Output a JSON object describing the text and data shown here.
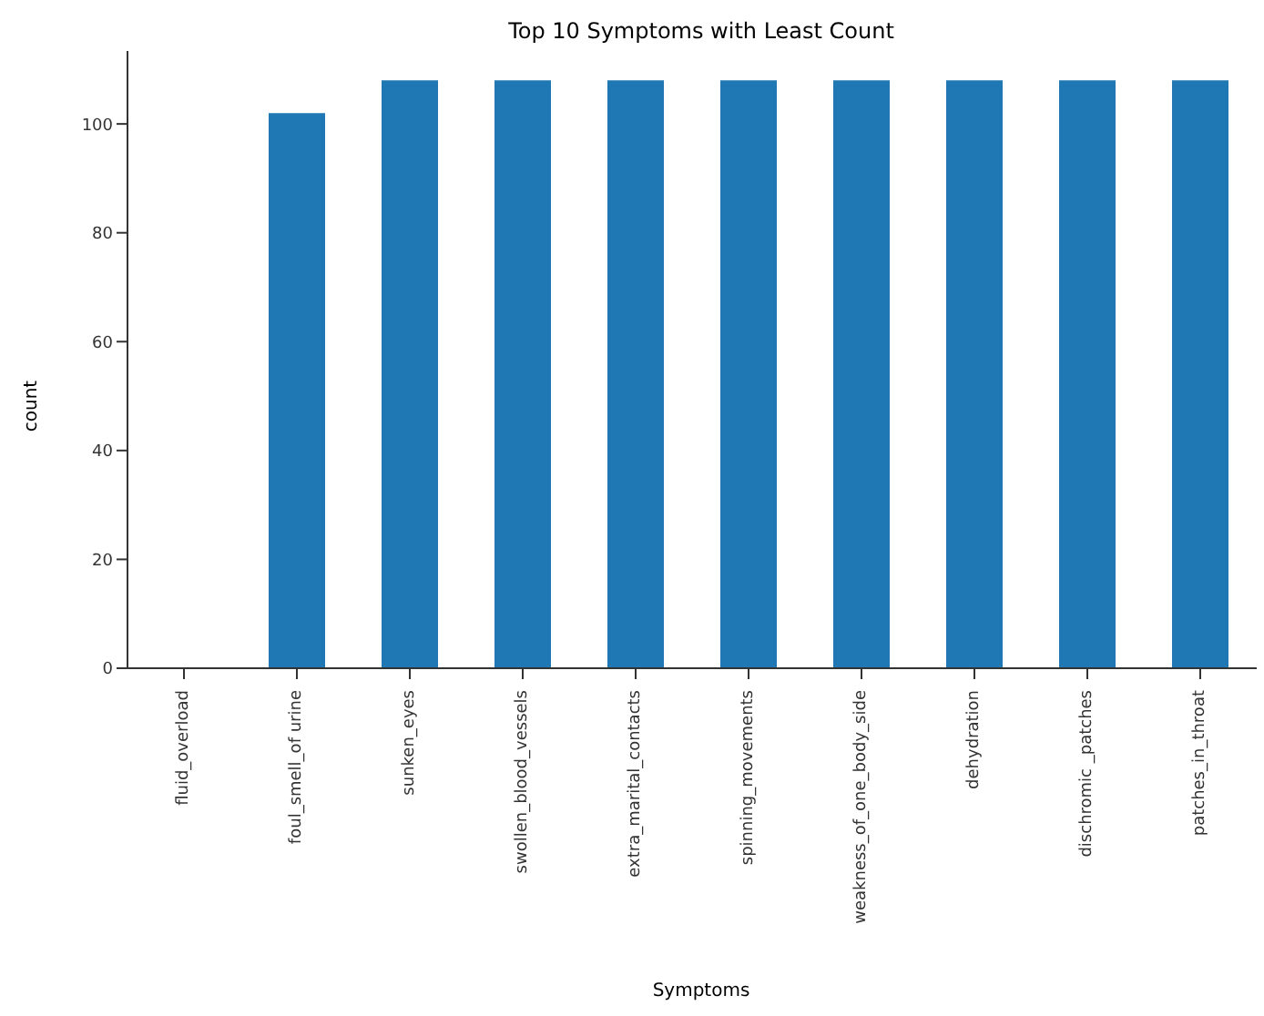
{
  "chart_data": {
    "type": "bar",
    "title": "Top 10 Symptoms with Least Count",
    "xlabel": "Symptoms",
    "ylabel": "count",
    "categories": [
      "fluid_overload",
      "foul_smell_of urine",
      "sunken_eyes",
      "swollen_blood_vessels",
      "extra_marital_contacts",
      "spinning_movements",
      "weakness_of_one_body_side",
      "dehydration",
      "dischromic _patches",
      "patches_in_throat"
    ],
    "values": [
      0,
      102,
      108,
      108,
      108,
      108,
      108,
      108,
      108,
      108
    ],
    "color": "#1f77b4",
    "ylim": [
      0,
      113.4
    ],
    "yticks": [
      0,
      20,
      40,
      60,
      80,
      100
    ],
    "grid": false,
    "legend": false
  }
}
